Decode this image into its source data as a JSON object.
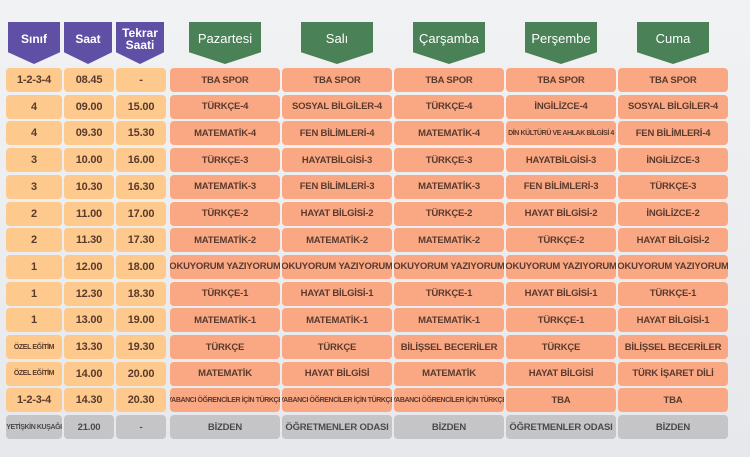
{
  "headers": {
    "sinif": "Sınıf",
    "saat": "Saat",
    "tekrar": "Tekrar Saati",
    "days": [
      "Pazartesi",
      "Salı",
      "Çarşamba",
      "Perşembe",
      "Cuma"
    ]
  },
  "colors": {
    "header_purple": "#5f4fa5",
    "header_green": "#4a8156",
    "left_cell": "#fdc98c",
    "day_cell": "#f9a883",
    "gray_cell": "#c5c5c8"
  },
  "rows": [
    {
      "sinif": "1-2-3-4",
      "saat": "08.45",
      "tekrar": "-",
      "days": [
        "TBA SPOR",
        "TBA SPOR",
        "TBA SPOR",
        "TBA SPOR",
        "TBA SPOR"
      ]
    },
    {
      "sinif": "4",
      "saat": "09.00",
      "tekrar": "15.00",
      "days": [
        "TÜRKÇE-4",
        "SOSYAL BİLGİLER-4",
        "TÜRKÇE-4",
        "İNGİLİZCE-4",
        "SOSYAL BİLGİLER-4"
      ]
    },
    {
      "sinif": "4",
      "saat": "09.30",
      "tekrar": "15.30",
      "days": [
        "MATEMATİK-4",
        "FEN BİLİMLERİ-4",
        "MATEMATİK-4",
        "DİN KÜLTÜRÜ VE AHLAK BİLGİSİ 4",
        "FEN BİLİMLERİ-4"
      ]
    },
    {
      "sinif": "3",
      "saat": "10.00",
      "tekrar": "16.00",
      "days": [
        "TÜRKÇE-3",
        "HAYATBİLGİSİ-3",
        "TÜRKÇE-3",
        "HAYATBİLGİSİ-3",
        "İNGİLİZCE-3"
      ]
    },
    {
      "sinif": "3",
      "saat": "10.30",
      "tekrar": "16.30",
      "days": [
        "MATEMATİK-3",
        "FEN BİLİMLERİ-3",
        "MATEMATİK-3",
        "FEN BİLİMLERİ-3",
        "TÜRKÇE-3"
      ]
    },
    {
      "sinif": "2",
      "saat": "11.00",
      "tekrar": "17.00",
      "days": [
        "TÜRKÇE-2",
        "HAYAT BİLGİSİ-2",
        "TÜRKÇE-2",
        "HAYAT BİLGİSİ-2",
        "İNGİLİZCE-2"
      ]
    },
    {
      "sinif": "2",
      "saat": "11.30",
      "tekrar": "17.30",
      "days": [
        "MATEMATİK-2",
        "MATEMATİK-2",
        "MATEMATİK-2",
        "TÜRKÇE-2",
        "HAYAT BİLGİSİ-2"
      ]
    },
    {
      "sinif": "1",
      "saat": "12.00",
      "tekrar": "18.00",
      "days": [
        "OKUYORUM YAZIYORUM",
        "OKUYORUM YAZIYORUM",
        "OKUYORUM YAZIYORUM",
        "OKUYORUM YAZIYORUM",
        "OKUYORUM YAZIYORUM"
      ]
    },
    {
      "sinif": "1",
      "saat": "12.30",
      "tekrar": "18.30",
      "days": [
        "TÜRKÇE-1",
        "HAYAT BİLGİSİ-1",
        "TÜRKÇE-1",
        "HAYAT BİLGİSİ-1",
        "TÜRKÇE-1"
      ]
    },
    {
      "sinif": "1",
      "saat": "13.00",
      "tekrar": "19.00",
      "days": [
        "MATEMATİK-1",
        "MATEMATİK-1",
        "MATEMATİK-1",
        "TÜRKÇE-1",
        "HAYAT BİLGİSİ-1"
      ]
    },
    {
      "sinif": "ÖZEL EĞİTİM",
      "saat": "13.30",
      "tekrar": "19.30",
      "days": [
        "TÜRKÇE",
        "TÜRKÇE",
        "BİLİŞSEL BECERİLER",
        "TÜRKÇE",
        "BİLİŞSEL BECERİLER"
      ]
    },
    {
      "sinif": "ÖZEL EĞİTİM",
      "saat": "14.00",
      "tekrar": "20.00",
      "days": [
        "MATEMATİK",
        "HAYAT BİLGİSİ",
        "MATEMATİK",
        "HAYAT BİLGİSİ",
        "TÜRK İŞARET DİLİ"
      ]
    },
    {
      "sinif": "1-2-3-4",
      "saat": "14.30",
      "tekrar": "20.30",
      "days": [
        "YABANCI ÖĞRENCİLER İÇİN TÜRKÇE",
        "YABANCI ÖĞRENCİLER İÇİN TÜRKÇE",
        "YABANCI ÖĞRENCİLER İÇİN TÜRKÇE",
        "TBA",
        "TBA"
      ]
    },
    {
      "sinif": "YETİŞKİN KUŞAĞI",
      "saat": "21.00",
      "tekrar": "-",
      "days": [
        "BİZDEN",
        "ÖĞRETMENLER ODASI",
        "BİZDEN",
        "ÖĞRETMENLER ODASI",
        "BİZDEN"
      ]
    }
  ]
}
